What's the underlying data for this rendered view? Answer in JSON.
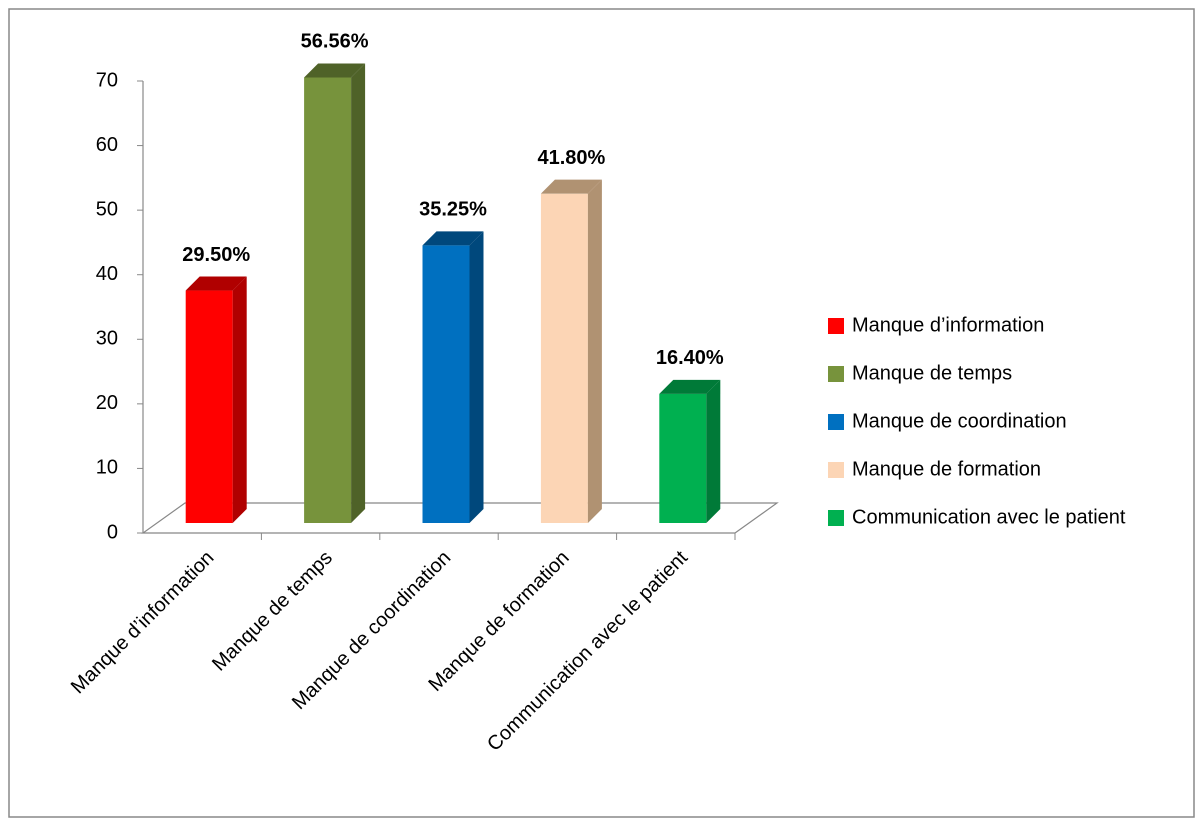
{
  "chart_data": {
    "type": "bar3d",
    "categories": [
      "Manque d’information",
      "Manque de temps",
      "Manque de coordination",
      "Manque de formation",
      "Communication avec le patient"
    ],
    "values": [
      36,
      69,
      43,
      51,
      20
    ],
    "annotations": [
      "29.50%",
      "56.56%",
      "35.25%",
      "41.80%",
      "16.40%"
    ],
    "colors": [
      "#ff0000",
      "#77933c",
      "#0070c0",
      "#fcd5b5",
      "#00b050"
    ],
    "side_colors": [
      "#b00000",
      "#4f6228",
      "#00487c",
      "#b09272",
      "#007a38"
    ],
    "ylim": [
      0,
      70
    ],
    "yticks": [
      0,
      10,
      20,
      30,
      40,
      50,
      60,
      70
    ],
    "legend": "right"
  }
}
